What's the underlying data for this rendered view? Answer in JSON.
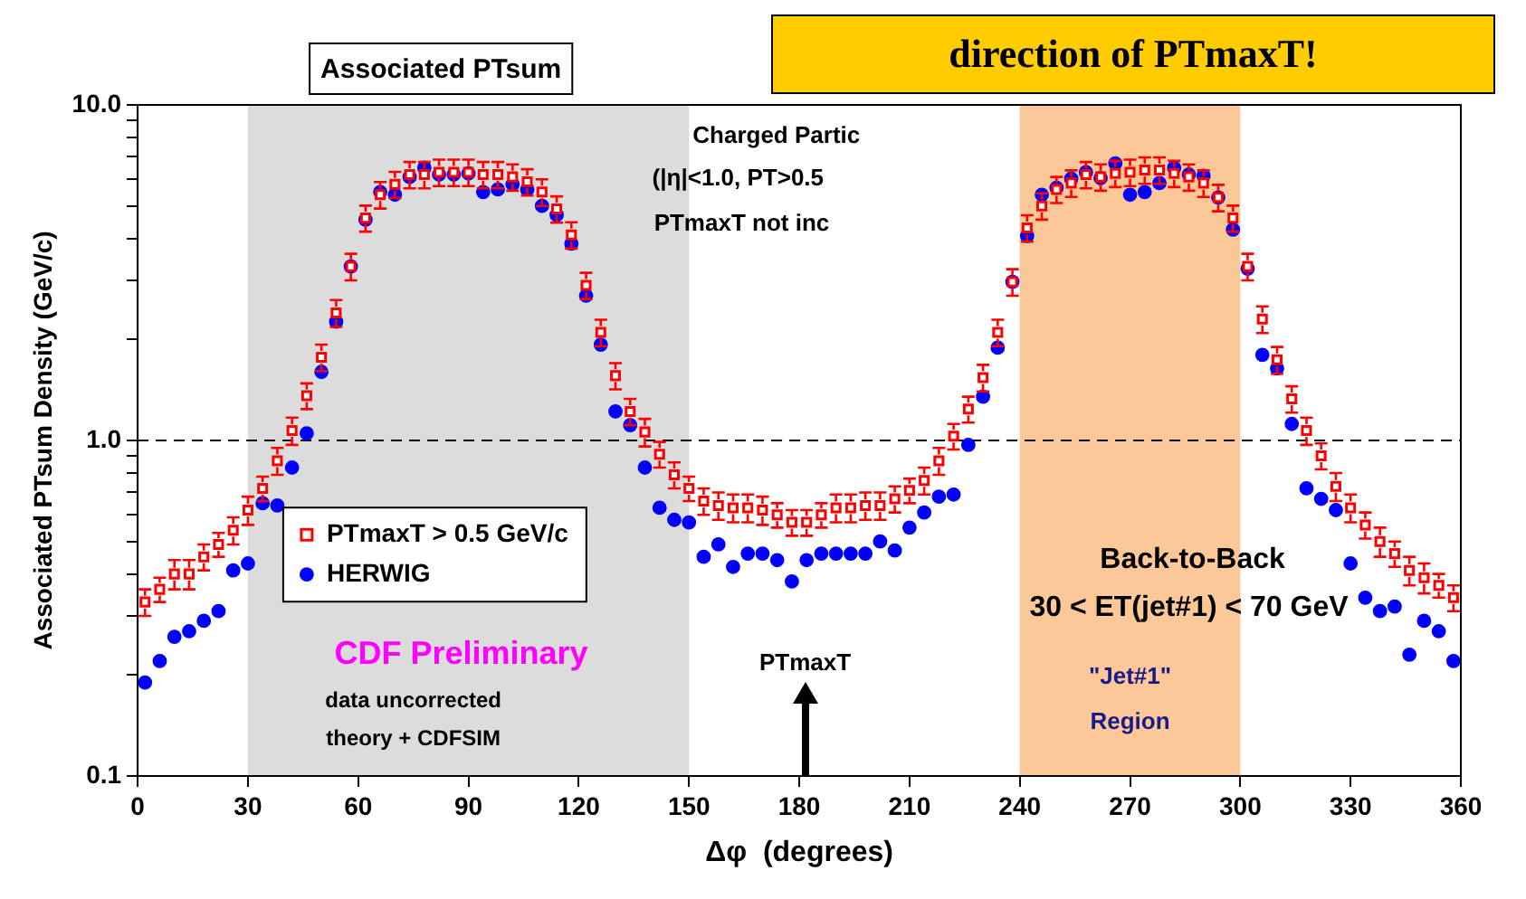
{
  "chart_data": {
    "type": "scatter",
    "title": "Associated PTsum",
    "xlabel": "Δφ  (degrees)",
    "ylabel": "Associated PTsum Density (GeV/c)",
    "x": [
      2,
      6,
      10,
      14,
      18,
      22,
      26,
      30,
      34,
      38,
      42,
      46,
      50,
      54,
      58,
      62,
      66,
      70,
      74,
      78,
      82,
      86,
      90,
      94,
      98,
      102,
      106,
      110,
      114,
      118,
      122,
      126,
      130,
      134,
      138,
      142,
      146,
      150,
      154,
      158,
      162,
      166,
      170,
      174,
      178,
      182,
      186,
      190,
      194,
      198,
      202,
      206,
      210,
      214,
      218,
      222,
      226,
      230,
      234,
      238,
      242,
      246,
      250,
      254,
      258,
      262,
      266,
      270,
      274,
      278,
      282,
      286,
      290,
      294,
      298,
      302,
      306,
      310,
      314,
      318,
      322,
      326,
      330,
      334,
      338,
      342,
      346,
      350,
      354,
      358
    ],
    "series": [
      {
        "name": "PTmaxT > 0.5 GeV/c",
        "color": "#ff0000",
        "marker": "square",
        "values": [
          0.33,
          0.36,
          0.4,
          0.4,
          0.45,
          0.49,
          0.54,
          0.62,
          0.72,
          0.87,
          1.07,
          1.36,
          1.77,
          2.4,
          3.3,
          4.6,
          5.4,
          5.8,
          6.2,
          6.2,
          6.3,
          6.3,
          6.3,
          6.2,
          6.2,
          6.1,
          5.9,
          5.5,
          4.9,
          4.1,
          2.9,
          2.1,
          1.56,
          1.22,
          1.06,
          0.91,
          0.79,
          0.72,
          0.66,
          0.64,
          0.63,
          0.63,
          0.62,
          0.6,
          0.57,
          0.57,
          0.6,
          0.63,
          0.63,
          0.64,
          0.64,
          0.67,
          0.71,
          0.76,
          0.87,
          1.03,
          1.24,
          1.54,
          2.1,
          2.97,
          4.3,
          5.0,
          5.6,
          5.85,
          6.2,
          6.1,
          6.25,
          6.3,
          6.4,
          6.4,
          6.25,
          6.1,
          5.85,
          5.3,
          4.6,
          3.3,
          2.3,
          1.74,
          1.33,
          1.07,
          0.9,
          0.73,
          0.63,
          0.56,
          0.5,
          0.46,
          0.41,
          0.39,
          0.37,
          0.34
        ],
        "errors": [
          0.03,
          0.03,
          0.04,
          0.04,
          0.04,
          0.04,
          0.05,
          0.06,
          0.06,
          0.08,
          0.1,
          0.12,
          0.16,
          0.22,
          0.3,
          0.41,
          0.49,
          0.52,
          0.56,
          0.56,
          0.57,
          0.57,
          0.57,
          0.56,
          0.56,
          0.55,
          0.53,
          0.5,
          0.44,
          0.37,
          0.26,
          0.19,
          0.14,
          0.11,
          0.1,
          0.08,
          0.07,
          0.06,
          0.06,
          0.06,
          0.06,
          0.06,
          0.06,
          0.05,
          0.05,
          0.05,
          0.05,
          0.06,
          0.06,
          0.06,
          0.06,
          0.06,
          0.06,
          0.07,
          0.08,
          0.09,
          0.11,
          0.14,
          0.19,
          0.27,
          0.39,
          0.45,
          0.5,
          0.53,
          0.56,
          0.55,
          0.56,
          0.57,
          0.58,
          0.58,
          0.56,
          0.55,
          0.53,
          0.48,
          0.41,
          0.3,
          0.21,
          0.16,
          0.12,
          0.1,
          0.08,
          0.07,
          0.06,
          0.05,
          0.05,
          0.04,
          0.04,
          0.04,
          0.03,
          0.03
        ]
      },
      {
        "name": "HERWIG",
        "color": "#0000ff",
        "marker": "circle",
        "values": [
          0.19,
          0.22,
          0.26,
          0.27,
          0.29,
          0.31,
          0.41,
          0.43,
          0.65,
          0.64,
          0.83,
          1.05,
          1.6,
          2.26,
          3.3,
          4.55,
          5.5,
          5.4,
          6.1,
          6.5,
          6.2,
          6.2,
          6.25,
          5.5,
          5.6,
          5.8,
          5.6,
          5.0,
          4.7,
          3.86,
          2.7,
          1.93,
          1.22,
          1.11,
          0.83,
          0.63,
          0.58,
          0.57,
          0.45,
          0.49,
          0.42,
          0.46,
          0.46,
          0.44,
          0.38,
          0.44,
          0.46,
          0.46,
          0.46,
          0.46,
          0.5,
          0.47,
          0.55,
          0.61,
          0.68,
          0.69,
          0.97,
          1.35,
          1.89,
          2.97,
          4.07,
          5.4,
          5.66,
          6.03,
          6.3,
          6.05,
          6.7,
          5.4,
          5.5,
          5.85,
          6.5,
          6.2,
          6.15,
          5.3,
          4.25,
          3.25,
          1.8,
          1.64,
          1.12,
          0.72,
          0.67,
          0.62,
          0.43,
          0.34,
          0.31,
          0.32,
          0.23,
          0.29,
          0.27,
          0.22
        ]
      }
    ],
    "xlim": [
      0,
      360
    ],
    "xticks": [
      0,
      30,
      60,
      90,
      120,
      150,
      180,
      210,
      240,
      270,
      300,
      330,
      360
    ],
    "ylim": [
      0.1,
      10
    ],
    "yticks": [
      {
        "value": 0.1,
        "label": "0.1"
      },
      {
        "value": 0.2,
        "label": null
      },
      {
        "value": 0.3,
        "label": null
      },
      {
        "value": 0.4,
        "label": null
      },
      {
        "value": 0.5,
        "label": null
      },
      {
        "value": 0.6,
        "label": null
      },
      {
        "value": 0.7,
        "label": null
      },
      {
        "value": 0.8,
        "label": null
      },
      {
        "value": 0.9,
        "label": null
      },
      {
        "value": 1,
        "label": "1.0"
      },
      {
        "value": 2,
        "label": null
      },
      {
        "value": 3,
        "label": null
      },
      {
        "value": 4,
        "label": null
      },
      {
        "value": 5,
        "label": null
      },
      {
        "value": 6,
        "label": null
      },
      {
        "value": 7,
        "label": null
      },
      {
        "value": 8,
        "label": null
      },
      {
        "value": 9,
        "label": null
      },
      {
        "value": 10,
        "label": "10.0"
      }
    ],
    "log": "y",
    "grid": false,
    "legend": "left",
    "ref_lines": [
      {
        "axis": "y",
        "value": 1,
        "line_style": "dashed",
        "color": "#000000"
      }
    ],
    "bands": [
      {
        "axis": "x",
        "from": 30,
        "to": 150,
        "color": "#dcdcdc"
      },
      {
        "axis": "x",
        "from": 240,
        "to": 300,
        "color": "#fdc898"
      }
    ],
    "annotations": [
      "Charged Partic",
      "(|η|<1.0, PT>0.5",
      "PTmaxT not inc",
      "CDF Preliminary",
      "data uncorrected",
      "theory + CDFSIM",
      "PTmaxT",
      "Back-to-Back",
      "30 < ET(jet#1) < 70 GeV",
      "\"Jet#1\"",
      "Region",
      "direction of PTmaxT!"
    ]
  }
}
